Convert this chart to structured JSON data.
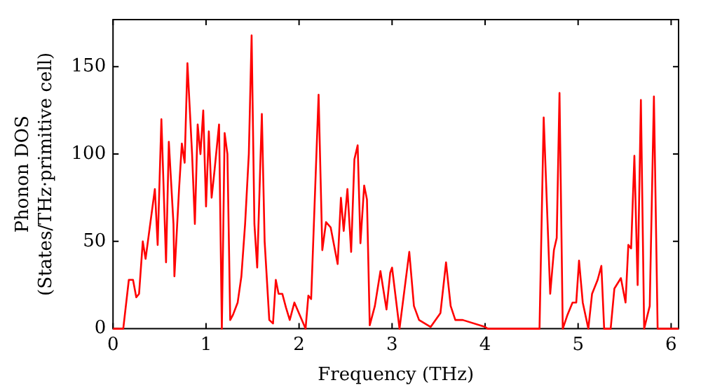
{
  "chart_data": {
    "type": "line",
    "xlabel": "Frequency (THz)",
    "ylabel": "Phonon DOS\n(States/THz·primitive cell)",
    "xlim": [
      0,
      6.08
    ],
    "ylim": [
      0,
      177
    ],
    "xticks": [
      0,
      1,
      2,
      3,
      4,
      5,
      6
    ],
    "yticks": [
      0,
      50,
      100,
      150
    ],
    "grid": false,
    "legend": false,
    "marker": "none",
    "line_style": "solid",
    "series": [
      {
        "color": "#ff0000",
        "x": [
          0,
          0.11,
          0.17,
          0.215,
          0.25,
          0.28,
          0.32,
          0.35,
          0.4,
          0.45,
          0.48,
          0.52,
          0.57,
          0.6,
          0.65,
          0.66,
          0.71,
          0.74,
          0.77,
          0.8,
          0.85,
          0.88,
          0.91,
          0.94,
          0.97,
          1.0,
          1.03,
          1.06,
          1.09,
          1.14,
          1.17,
          1.2,
          1.23,
          1.26,
          1.29,
          1.34,
          1.38,
          1.42,
          1.46,
          1.49,
          1.52,
          1.55,
          1.6,
          1.63,
          1.68,
          1.72,
          1.75,
          1.78,
          1.82,
          1.86,
          1.9,
          1.95,
          2.07,
          2.1,
          2.13,
          2.21,
          2.25,
          2.29,
          2.34,
          2.415,
          2.45,
          2.48,
          2.52,
          2.56,
          2.595,
          2.63,
          2.66,
          2.7,
          2.73,
          2.76,
          2.815,
          2.875,
          2.94,
          2.98,
          3.0,
          3.08,
          3.185,
          3.235,
          3.29,
          3.415,
          3.52,
          3.58,
          3.63,
          3.68,
          3.76,
          4.0,
          4.03,
          4.585,
          4.63,
          4.7,
          4.74,
          4.77,
          4.8,
          4.835,
          4.886,
          4.94,
          4.98,
          5.01,
          5.05,
          5.11,
          5.15,
          5.21,
          5.25,
          5.28,
          5.35,
          5.39,
          5.46,
          5.51,
          5.54,
          5.57,
          5.605,
          5.64,
          5.675,
          5.71,
          5.77,
          5.815,
          5.855,
          6.08
        ],
        "values": [
          0,
          0,
          28,
          28,
          18,
          20,
          50,
          40,
          60,
          80,
          48,
          120,
          38,
          107,
          60,
          30,
          80,
          106,
          95,
          152,
          100,
          60,
          117,
          100,
          125,
          70,
          113,
          75,
          90,
          117,
          0,
          112,
          100,
          5,
          8,
          15,
          30,
          60,
          100,
          168,
          60,
          35,
          123,
          50,
          5,
          3,
          28,
          20,
          20,
          12,
          5,
          15,
          0,
          19,
          17,
          134,
          45,
          61,
          58,
          37,
          75,
          56,
          80,
          44,
          97,
          105,
          49,
          82,
          74,
          2,
          13,
          33,
          11,
          32,
          35,
          0,
          44,
          13,
          5,
          1,
          9,
          38,
          13,
          5,
          5,
          1,
          0,
          0,
          121,
          20,
          45,
          52,
          135,
          0,
          8,
          15,
          15,
          39,
          15,
          0,
          20,
          28,
          36,
          0,
          0,
          23,
          29,
          15,
          48,
          46,
          99,
          25,
          131,
          0,
          13,
          133,
          0,
          0
        ]
      }
    ]
  }
}
